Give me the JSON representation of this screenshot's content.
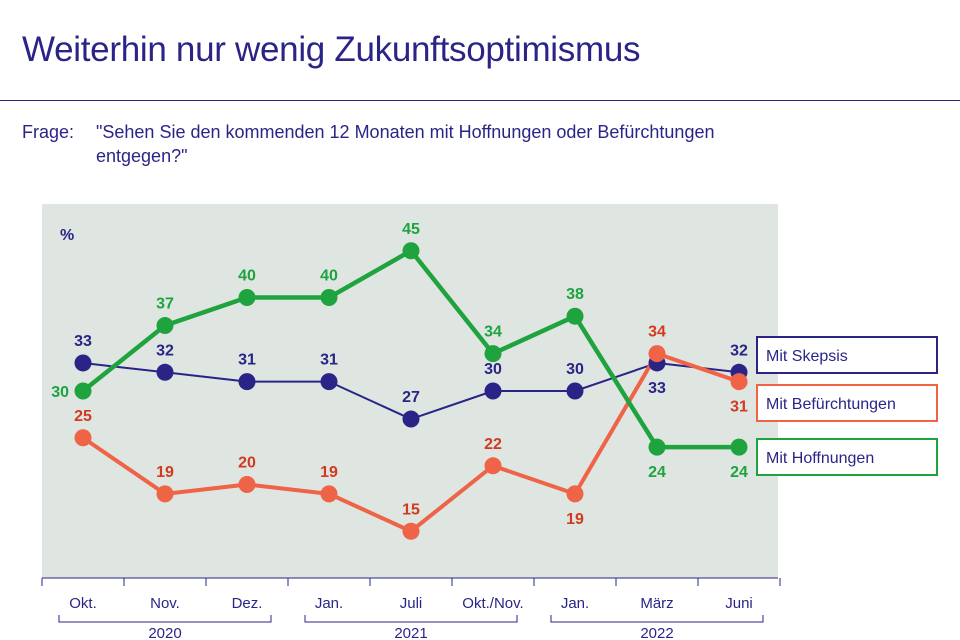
{
  "title": "Weiterhin nur wenig Zukunftsoptimismus",
  "question": {
    "prefix": "Frage:",
    "line1": "\"Sehen Sie den kommenden 12 Monaten mit Hoffnungen oder Befürchtungen",
    "line2": "entgegen?\""
  },
  "chart_data": {
    "type": "line",
    "unit_label": "%",
    "categories": [
      "Okt.",
      "Nov.",
      "Dez.",
      "Jan.",
      "Juli",
      "Okt./Nov.",
      "Jan.",
      "März",
      "Juni"
    ],
    "year_groups": [
      {
        "label": "2020",
        "from": 0,
        "to": 2
      },
      {
        "label": "2021",
        "from": 3,
        "to": 5
      },
      {
        "label": "2022",
        "from": 6,
        "to": 8
      }
    ],
    "ylim": [
      10,
      50
    ],
    "series": [
      {
        "name": "Mit Skepsis",
        "color": "#2b2487",
        "values": [
          33,
          32,
          31,
          31,
          27,
          30,
          30,
          33,
          32
        ],
        "label_pos": [
          "above",
          "above",
          "above",
          "above",
          "above",
          "above",
          "above",
          "below",
          "above"
        ],
        "legend_value": 32
      },
      {
        "name": "Mit Befürchtungen",
        "color": "#ef6347",
        "values": [
          25,
          19,
          20,
          19,
          15,
          22,
          19,
          34,
          31
        ],
        "label_pos": [
          "above",
          "above",
          "above",
          "above",
          "above",
          "above",
          "below",
          "above",
          "below"
        ],
        "label_color": "#d23a1f",
        "legend_value": 31
      },
      {
        "name": "Mit Hoffnungen",
        "color": "#1fa33f",
        "values": [
          30,
          37,
          40,
          40,
          45,
          34,
          38,
          24,
          24
        ],
        "label_pos": [
          "left",
          "above",
          "above",
          "above",
          "above",
          "above",
          "above",
          "below",
          "below"
        ],
        "legend_value": 24
      }
    ],
    "legend": [
      "Mit Skepsis",
      "Mit Befürchtungen",
      "Mit Hoffnungen"
    ]
  }
}
